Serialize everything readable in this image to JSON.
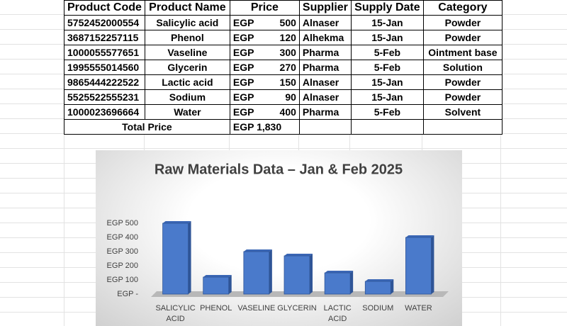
{
  "table": {
    "columns": [
      "Product Code",
      "Product Name",
      "Price",
      "Supplier",
      "Supply Date",
      "Category"
    ],
    "rows": [
      {
        "code": "5752452000554",
        "name": "Salicylic acid",
        "currency": "EGP",
        "price": 500,
        "supplier": "Alnaser",
        "date": "15-Jan",
        "category": "Powder"
      },
      {
        "code": "3687152257115",
        "name": "Phenol",
        "currency": "EGP",
        "price": 120,
        "supplier": "Alhekma",
        "date": "15-Jan",
        "category": "Powder"
      },
      {
        "code": "1000055577651",
        "name": "Vaseline",
        "currency": "EGP",
        "price": 300,
        "supplier": "Pharma",
        "date": "5-Feb",
        "category": "Ointment base"
      },
      {
        "code": "1995555014560",
        "name": "Glycerin",
        "currency": "EGP",
        "price": 270,
        "supplier": "Pharma",
        "date": "5-Feb",
        "category": "Solution"
      },
      {
        "code": "9865444222522",
        "name": "Lactic acid",
        "currency": "EGP",
        "price": 150,
        "supplier": "Alnaser",
        "date": "15-Jan",
        "category": "Powder"
      },
      {
        "code": "5525522555231",
        "name": "Sodium",
        "currency": "EGP",
        "price": 90,
        "supplier": "Alnaser",
        "date": "15-Jan",
        "category": "Powder"
      },
      {
        "code": "1000023696664",
        "name": "Water",
        "currency": "EGP",
        "price": 400,
        "supplier": "Pharma",
        "date": "5-Feb",
        "category": "Solvent"
      }
    ],
    "total": {
      "label": "Total Price",
      "currency": "EGP",
      "amount": "1,830"
    }
  },
  "chart_data": {
    "type": "bar",
    "title": "Raw Materials Data – Jan & Feb 2025",
    "categories": [
      "SALICYLIC ACID",
      "PHENOL",
      "VASELINE",
      "GLYCERIN",
      "LACTIC ACID",
      "SODIUM",
      "WATER"
    ],
    "values": [
      500,
      120,
      300,
      270,
      150,
      90,
      400
    ],
    "color": "#4a7acb",
    "ylim": [
      0,
      500
    ],
    "yticks": [
      {
        "value": 0,
        "label": "EGP -"
      },
      {
        "value": 100,
        "label": "EGP 100"
      },
      {
        "value": 200,
        "label": "EGP 200"
      },
      {
        "value": 300,
        "label": "EGP 300"
      },
      {
        "value": 400,
        "label": "EGP 400"
      },
      {
        "value": 500,
        "label": "EGP 500"
      }
    ],
    "grid": false
  }
}
